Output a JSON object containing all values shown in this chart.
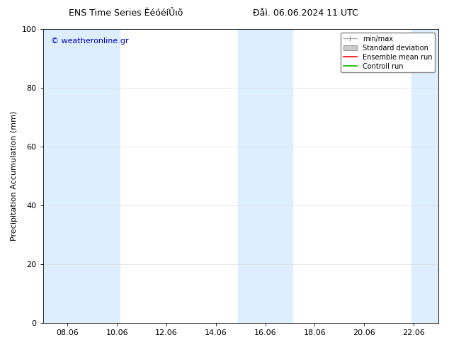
{
  "title_left": "ENS Time Series ÊéóéíÛıõ",
  "title_right": "Ðåì. 06.06.2024 11 UTC",
  "ylabel": "Precipitation Accumulation (mm)",
  "ylim": [
    0,
    100
  ],
  "background_color": "#ffffff",
  "plot_bg_color": "#ffffff",
  "watermark": "© weatheronline.gr",
  "watermark_color": "#0000cc",
  "shaded_bands": [
    {
      "x_start": 7.0,
      "x_end": 10.1,
      "color": "#ddeeff"
    },
    {
      "x_start": 14.9,
      "x_end": 17.1,
      "color": "#ddeeff"
    },
    {
      "x_start": 21.9,
      "x_end": 23.1,
      "color": "#ddeeff"
    }
  ],
  "xtick_labels": [
    "08.06",
    "10.06",
    "12.06",
    "14.06",
    "16.06",
    "18.06",
    "20.06",
    "22.06"
  ],
  "xtick_values": [
    8,
    10,
    12,
    14,
    16,
    18,
    20,
    22
  ],
  "xlim": [
    7.0,
    23.0
  ],
  "ytick_values": [
    0,
    20,
    40,
    60,
    80,
    100
  ],
  "legend_labels": [
    "min/max",
    "Standard deviation",
    "Ensemble mean run",
    "Controll run"
  ],
  "font_size_title": 9,
  "font_size_labels": 8,
  "font_size_ticks": 8,
  "font_size_watermark": 8,
  "font_size_legend": 7
}
